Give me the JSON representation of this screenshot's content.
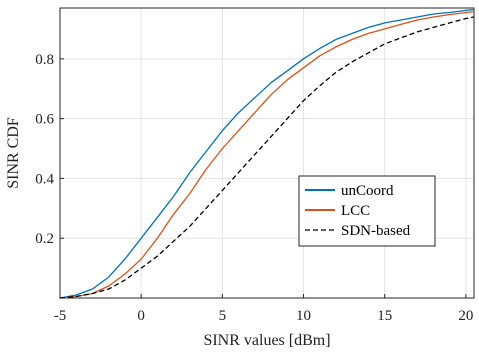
{
  "chart_data": {
    "type": "line",
    "xlabel": "SINR values [dBm]",
    "ylabel": "SINR CDF",
    "xlim": [
      -5,
      20.5
    ],
    "ylim": [
      0,
      0.97
    ],
    "xticks": [
      -5,
      0,
      5,
      10,
      15,
      20
    ],
    "yticks": [
      0.2,
      0.4,
      0.6,
      0.8
    ],
    "ytick_labels": [
      "0.2",
      "0.4",
      "0.6",
      "0.8"
    ],
    "grid": true,
    "legend_position": "right-center",
    "series": [
      {
        "name": "unCoord",
        "color": "#0072BD",
        "dash": "solid",
        "x": [
          -5,
          -4,
          -3,
          -2,
          -1,
          0,
          1,
          2,
          3,
          4,
          5,
          6,
          7,
          8,
          9,
          10,
          11,
          12,
          13,
          14,
          15,
          16,
          17,
          18,
          19,
          20,
          20.5
        ],
        "y": [
          0.0,
          0.01,
          0.03,
          0.07,
          0.13,
          0.2,
          0.27,
          0.34,
          0.42,
          0.49,
          0.56,
          0.62,
          0.67,
          0.72,
          0.76,
          0.8,
          0.835,
          0.865,
          0.885,
          0.905,
          0.92,
          0.93,
          0.94,
          0.95,
          0.955,
          0.962,
          0.965
        ]
      },
      {
        "name": "LCC",
        "color": "#D95319",
        "dash": "solid",
        "x": [
          -5,
          -4,
          -3,
          -2,
          -1,
          0,
          1,
          2,
          3,
          4,
          5,
          6,
          7,
          8,
          9,
          10,
          11,
          12,
          13,
          14,
          15,
          16,
          17,
          18,
          19,
          20,
          20.5
        ],
        "y": [
          0.0,
          0.005,
          0.015,
          0.04,
          0.08,
          0.13,
          0.2,
          0.28,
          0.35,
          0.43,
          0.5,
          0.56,
          0.62,
          0.68,
          0.73,
          0.77,
          0.81,
          0.84,
          0.865,
          0.885,
          0.9,
          0.915,
          0.93,
          0.94,
          0.948,
          0.955,
          0.958
        ]
      },
      {
        "name": "SDN-based",
        "color": "#000000",
        "dash": "dashed",
        "x": [
          -5,
          -4,
          -3,
          -2,
          -1,
          0,
          1,
          2,
          3,
          4,
          5,
          6,
          7,
          8,
          9,
          10,
          11,
          12,
          13,
          14,
          15,
          16,
          17,
          18,
          19,
          20,
          20.5
        ],
        "y": [
          0.0,
          0.005,
          0.015,
          0.03,
          0.06,
          0.1,
          0.14,
          0.19,
          0.24,
          0.3,
          0.36,
          0.42,
          0.48,
          0.54,
          0.6,
          0.66,
          0.71,
          0.755,
          0.79,
          0.82,
          0.85,
          0.87,
          0.89,
          0.905,
          0.92,
          0.935,
          0.94
        ]
      }
    ]
  }
}
